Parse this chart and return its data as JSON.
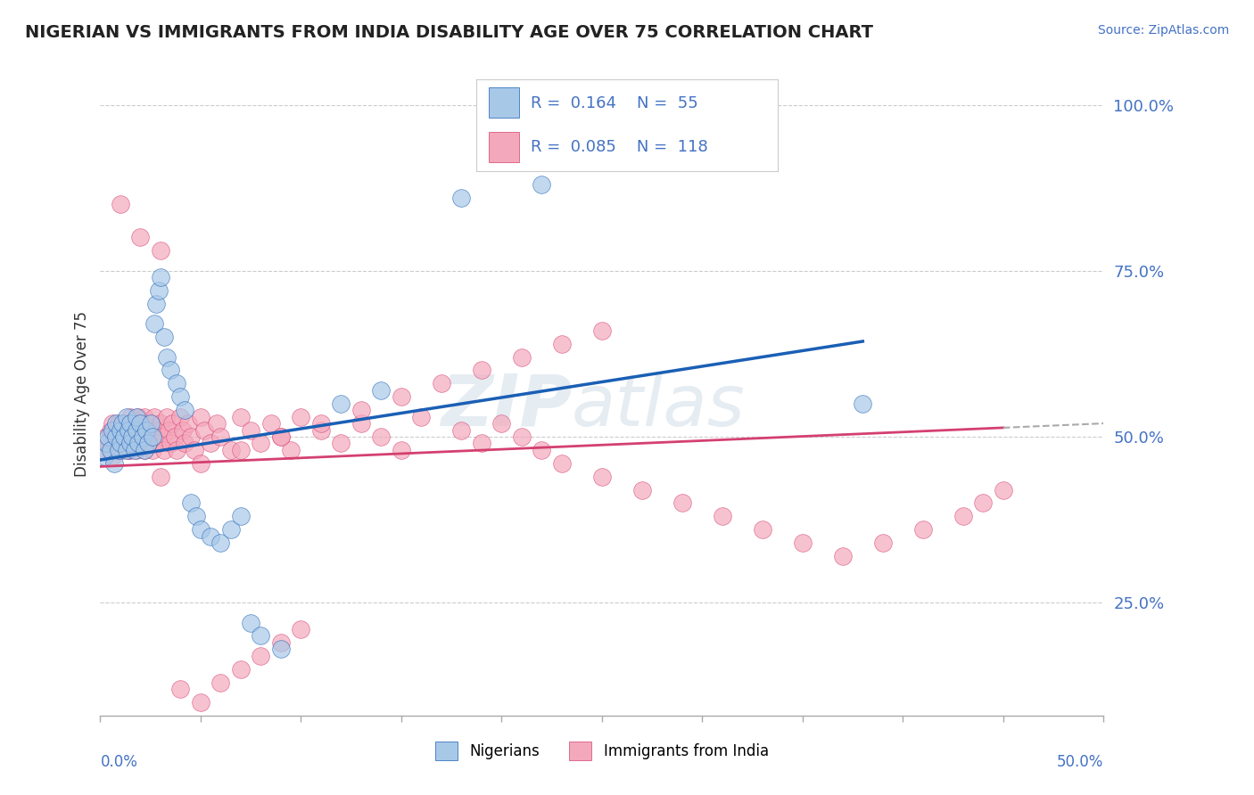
{
  "title": "NIGERIAN VS IMMIGRANTS FROM INDIA DISABILITY AGE OVER 75 CORRELATION CHART",
  "source": "Source: ZipAtlas.com",
  "ylabel": "Disability Age Over 75",
  "legend_label1": "Nigerians",
  "legend_label2": "Immigrants from India",
  "r1": "0.164",
  "n1": "55",
  "r2": "0.085",
  "n2": "118",
  "color1": "#a8c8e8",
  "color2": "#f4a8bc",
  "line1_color": "#1a5fb5",
  "line2_color": "#d44070",
  "watermark": "ZipAtlas",
  "xmin": 0.0,
  "xmax": 0.5,
  "ymin": 0.08,
  "ymax": 1.05,
  "yticks": [
    0.25,
    0.5,
    0.75,
    1.0
  ],
  "ytick_labels": [
    "25.0%",
    "50.0%",
    "75.0%",
    "100.0%"
  ],
  "nigerian_x": [
    0.002,
    0.003,
    0.004,
    0.005,
    0.006,
    0.007,
    0.008,
    0.008,
    0.009,
    0.01,
    0.01,
    0.011,
    0.012,
    0.013,
    0.013,
    0.014,
    0.015,
    0.015,
    0.016,
    0.017,
    0.018,
    0.018,
    0.019,
    0.02,
    0.021,
    0.022,
    0.023,
    0.024,
    0.025,
    0.026,
    0.027,
    0.028,
    0.029,
    0.03,
    0.032,
    0.033,
    0.035,
    0.038,
    0.04,
    0.042,
    0.045,
    0.048,
    0.05,
    0.055,
    0.06,
    0.065,
    0.07,
    0.075,
    0.08,
    0.09,
    0.12,
    0.14,
    0.18,
    0.22,
    0.38
  ],
  "nigerian_y": [
    0.47,
    0.49,
    0.5,
    0.48,
    0.51,
    0.46,
    0.5,
    0.52,
    0.48,
    0.51,
    0.49,
    0.52,
    0.5,
    0.48,
    0.53,
    0.51,
    0.49,
    0.52,
    0.5,
    0.48,
    0.51,
    0.53,
    0.49,
    0.52,
    0.5,
    0.48,
    0.51,
    0.49,
    0.52,
    0.5,
    0.67,
    0.7,
    0.72,
    0.74,
    0.65,
    0.62,
    0.6,
    0.58,
    0.56,
    0.54,
    0.4,
    0.38,
    0.36,
    0.35,
    0.34,
    0.36,
    0.38,
    0.22,
    0.2,
    0.18,
    0.55,
    0.57,
    0.86,
    0.88,
    0.55
  ],
  "india_x": [
    0.002,
    0.003,
    0.004,
    0.005,
    0.006,
    0.006,
    0.007,
    0.008,
    0.008,
    0.009,
    0.009,
    0.01,
    0.01,
    0.011,
    0.011,
    0.012,
    0.012,
    0.013,
    0.013,
    0.014,
    0.014,
    0.015,
    0.015,
    0.015,
    0.016,
    0.016,
    0.017,
    0.018,
    0.018,
    0.019,
    0.019,
    0.02,
    0.02,
    0.021,
    0.022,
    0.022,
    0.023,
    0.024,
    0.025,
    0.025,
    0.026,
    0.027,
    0.028,
    0.029,
    0.03,
    0.031,
    0.032,
    0.033,
    0.034,
    0.035,
    0.036,
    0.037,
    0.038,
    0.04,
    0.041,
    0.042,
    0.044,
    0.045,
    0.047,
    0.05,
    0.052,
    0.055,
    0.058,
    0.06,
    0.065,
    0.07,
    0.075,
    0.08,
    0.085,
    0.09,
    0.095,
    0.1,
    0.11,
    0.12,
    0.13,
    0.14,
    0.15,
    0.16,
    0.18,
    0.19,
    0.2,
    0.21,
    0.22,
    0.23,
    0.25,
    0.27,
    0.29,
    0.31,
    0.33,
    0.35,
    0.37,
    0.39,
    0.41,
    0.43,
    0.44,
    0.45,
    0.03,
    0.05,
    0.07,
    0.09,
    0.11,
    0.13,
    0.15,
    0.17,
    0.19,
    0.21,
    0.23,
    0.25,
    0.01,
    0.02,
    0.03,
    0.04,
    0.05,
    0.06,
    0.07,
    0.08,
    0.09,
    0.1
  ],
  "india_y": [
    0.48,
    0.5,
    0.49,
    0.51,
    0.47,
    0.52,
    0.5,
    0.49,
    0.51,
    0.48,
    0.52,
    0.5,
    0.49,
    0.51,
    0.48,
    0.52,
    0.5,
    0.49,
    0.51,
    0.48,
    0.52,
    0.5,
    0.48,
    0.53,
    0.51,
    0.49,
    0.52,
    0.5,
    0.48,
    0.53,
    0.51,
    0.49,
    0.52,
    0.5,
    0.48,
    0.53,
    0.51,
    0.49,
    0.52,
    0.5,
    0.48,
    0.53,
    0.51,
    0.49,
    0.52,
    0.5,
    0.48,
    0.53,
    0.51,
    0.49,
    0.52,
    0.5,
    0.48,
    0.53,
    0.51,
    0.49,
    0.52,
    0.5,
    0.48,
    0.53,
    0.51,
    0.49,
    0.52,
    0.5,
    0.48,
    0.53,
    0.51,
    0.49,
    0.52,
    0.5,
    0.48,
    0.53,
    0.51,
    0.49,
    0.52,
    0.5,
    0.48,
    0.53,
    0.51,
    0.49,
    0.52,
    0.5,
    0.48,
    0.46,
    0.44,
    0.42,
    0.4,
    0.38,
    0.36,
    0.34,
    0.32,
    0.34,
    0.36,
    0.38,
    0.4,
    0.42,
    0.44,
    0.46,
    0.48,
    0.5,
    0.52,
    0.54,
    0.56,
    0.58,
    0.6,
    0.62,
    0.64,
    0.66,
    0.85,
    0.8,
    0.78,
    0.12,
    0.1,
    0.13,
    0.15,
    0.17,
    0.19,
    0.21
  ]
}
